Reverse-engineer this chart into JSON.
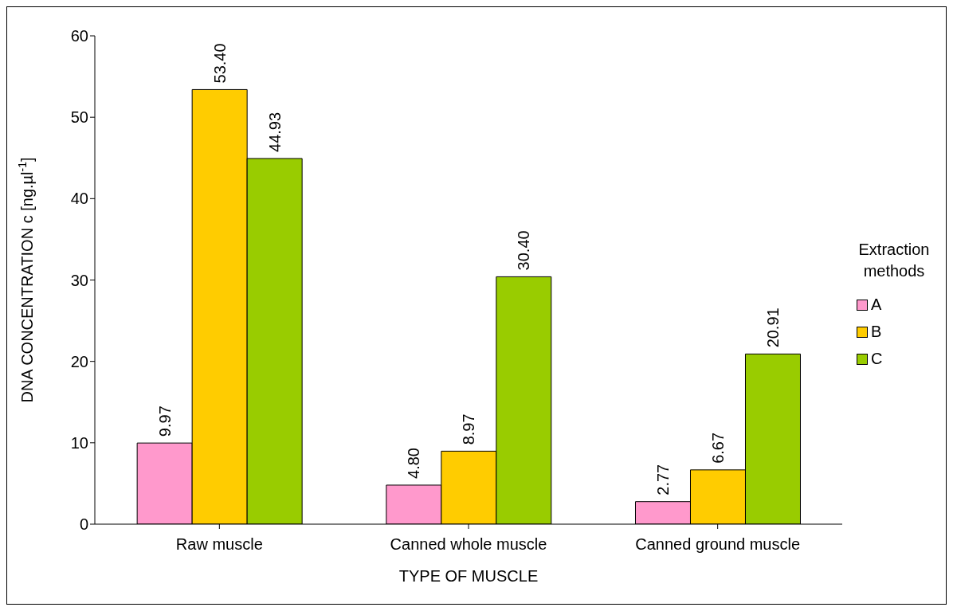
{
  "chart_data": {
    "type": "bar",
    "categories": [
      "Raw muscle",
      "Canned whole muscle",
      "Canned ground muscle"
    ],
    "series": [
      {
        "name": "A",
        "color": "#ff99cc",
        "values": [
          9.97,
          4.8,
          2.77
        ],
        "value_labels": [
          "9.97",
          "4.80",
          "2.77"
        ]
      },
      {
        "name": "B",
        "color": "#ffcc00",
        "values": [
          53.4,
          8.97,
          6.67
        ],
        "value_labels": [
          "53.40",
          "8.97",
          "6.67"
        ]
      },
      {
        "name": "C",
        "color": "#99cc00",
        "values": [
          44.93,
          30.4,
          20.91
        ],
        "value_labels": [
          "44.93",
          "30.40",
          "20.91"
        ]
      }
    ],
    "xlabel": "TYPE OF MUSCLE",
    "ylabel": "DNA CONCENTRATION c [ng.µl$^{-1}$]",
    "legend_title": "Extraction methods",
    "legend": "right",
    "ylim": [
      0,
      60
    ],
    "yticks": [
      0,
      10,
      20,
      30,
      40,
      50,
      60
    ],
    "grid": false
  }
}
